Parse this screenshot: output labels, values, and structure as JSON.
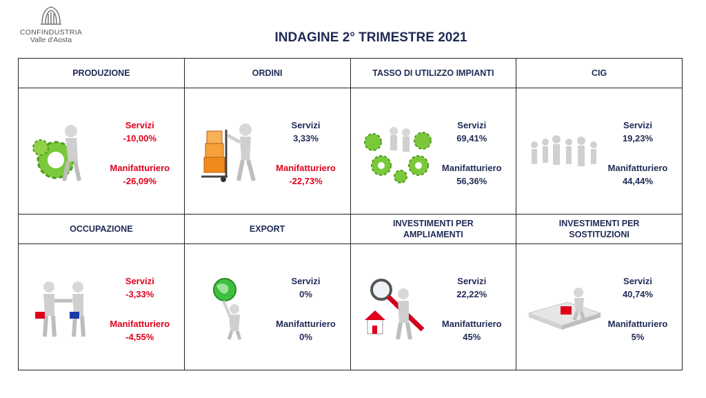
{
  "logo": {
    "line1": "CONFINDUSTRIA",
    "line2": "Valle d'Aosta"
  },
  "title": "INDAGINE 2° TRIMESTRE 2021",
  "colors": {
    "negative": "#e0001b",
    "positive": "#1f2a55"
  },
  "rows": [
    {
      "cells": [
        {
          "header": "PRODUZIONE",
          "icon": "gear-figure-icon",
          "servizi_label": "Servizi",
          "servizi_value": "-10,00%",
          "manif_label": "Manifatturiero",
          "manif_value": "-26,09%",
          "tone": "red"
        },
        {
          "header": "ORDINI",
          "icon": "boxes-cart-icon",
          "servizi_label": "Servizi",
          "servizi_value": "3,33%",
          "manif_label": "Manifatturiero",
          "manif_value": "-22,73%",
          "tone": "mixed"
        },
        {
          "header": "TASSO DI UTILIZZO IMPIANTI",
          "icon": "gears-team-icon",
          "servizi_label": "Servizi",
          "servizi_value": "69,41%",
          "manif_label": "Manifatturiero",
          "manif_value": "56,36%",
          "tone": "navy"
        },
        {
          "header": "CIG",
          "icon": "people-group-icon",
          "servizi_label": "Servizi",
          "servizi_value": "19,23%",
          "manif_label": "Manifatturiero",
          "manif_value": "44,44%",
          "tone": "navy"
        }
      ]
    },
    {
      "cells": [
        {
          "header": "OCCUPAZIONE",
          "icon": "handshake-icon",
          "servizi_label": "Servizi",
          "servizi_value": "-3,33%",
          "manif_label": "Manifatturiero",
          "manif_value": "-4,55%",
          "tone": "red"
        },
        {
          "header": "EXPORT",
          "icon": "globe-figure-icon",
          "servizi_label": "Servizi",
          "servizi_value": "0%",
          "manif_label": "Manifatturiero",
          "manif_value": "0%",
          "tone": "navy"
        },
        {
          "header": "INVESTIMENTI PER\nAMPLIAMENTI",
          "icon": "magnifier-house-icon",
          "servizi_label": "Servizi",
          "servizi_value": "22,22%",
          "manif_label": "Manifatturiero",
          "manif_value": "45%",
          "tone": "navy"
        },
        {
          "header": "INVESTIMENTI PER\nSOSTITUZIONI",
          "icon": "puzzle-figure-icon",
          "servizi_label": "Servizi",
          "servizi_value": "40,74%",
          "manif_label": "Manifatturiero",
          "manif_value": "5%",
          "tone": "navy"
        }
      ]
    }
  ]
}
